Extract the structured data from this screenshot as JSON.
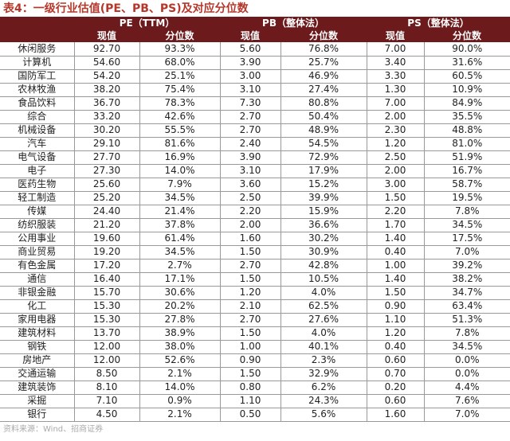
{
  "title": "表4：一级行业估值(PE、PB、PS)及对应分位数",
  "groups": [
    "PE（TTM）",
    "PB（整体法）",
    "PS（整体法）"
  ],
  "subheaders": [
    "现值",
    "分位数",
    "现值",
    "分位数",
    "现值",
    "分位数"
  ],
  "rows": [
    [
      "休闲服务",
      "92.70",
      "93.3%",
      "5.60",
      "76.8%",
      "7.00",
      "90.0%"
    ],
    [
      "计算机",
      "54.60",
      "68.0%",
      "3.90",
      "25.7%",
      "3.40",
      "31.6%"
    ],
    [
      "国防军工",
      "54.20",
      "25.1%",
      "3.00",
      "46.9%",
      "3.30",
      "60.5%"
    ],
    [
      "农林牧渔",
      "38.20",
      "75.4%",
      "3.10",
      "27.4%",
      "1.30",
      "10.9%"
    ],
    [
      "食品饮料",
      "36.70",
      "78.3%",
      "7.30",
      "80.8%",
      "7.00",
      "84.9%"
    ],
    [
      "综合",
      "33.20",
      "42.6%",
      "2.70",
      "50.4%",
      "2.00",
      "35.5%"
    ],
    [
      "机械设备",
      "30.20",
      "55.5%",
      "2.70",
      "48.9%",
      "2.30",
      "48.8%"
    ],
    [
      "汽车",
      "29.10",
      "81.6%",
      "2.40",
      "54.5%",
      "1.20",
      "81.0%"
    ],
    [
      "电气设备",
      "27.70",
      "16.9%",
      "3.90",
      "72.9%",
      "2.50",
      "51.9%"
    ],
    [
      "电子",
      "27.30",
      "14.0%",
      "3.10",
      "17.9%",
      "2.00",
      "16.7%"
    ],
    [
      "医药生物",
      "25.60",
      "7.9%",
      "3.60",
      "15.2%",
      "3.00",
      "58.7%"
    ],
    [
      "轻工制造",
      "25.20",
      "34.5%",
      "2.50",
      "39.9%",
      "1.50",
      "19.5%"
    ],
    [
      "传媒",
      "24.40",
      "21.4%",
      "2.20",
      "15.9%",
      "2.20",
      "7.8%"
    ],
    [
      "纺织服装",
      "21.20",
      "37.8%",
      "2.00",
      "36.6%",
      "1.70",
      "34.5%"
    ],
    [
      "公用事业",
      "19.60",
      "61.4%",
      "1.60",
      "30.2%",
      "1.40",
      "17.5%"
    ],
    [
      "商业贸易",
      "19.20",
      "34.5%",
      "1.50",
      "30.9%",
      "0.40",
      "7.0%"
    ],
    [
      "有色金属",
      "17.20",
      "2.7%",
      "2.70",
      "42.8%",
      "1.00",
      "39.2%"
    ],
    [
      "通信",
      "16.40",
      "17.1%",
      "1.50",
      "10.5%",
      "1.40",
      "38.2%"
    ],
    [
      "非银金融",
      "15.70",
      "30.6%",
      "1.20",
      "4.0%",
      "1.50",
      "34.7%"
    ],
    [
      "化工",
      "15.30",
      "20.2%",
      "2.10",
      "62.5%",
      "0.90",
      "63.4%"
    ],
    [
      "家用电器",
      "15.30",
      "27.8%",
      "2.70",
      "27.6%",
      "1.10",
      "51.3%"
    ],
    [
      "建筑材料",
      "13.70",
      "38.9%",
      "1.50",
      "4.0%",
      "1.20",
      "7.8%"
    ],
    [
      "钢铁",
      "12.00",
      "38.0%",
      "1.00",
      "40.1%",
      "0.40",
      "34.5%"
    ],
    [
      "房地产",
      "12.00",
      "52.6%",
      "0.90",
      "2.3%",
      "0.60",
      "0.0%"
    ],
    [
      "交通运输",
      "8.50",
      "2.1%",
      "1.50",
      "32.9%",
      "0.70",
      "0.0%"
    ],
    [
      "建筑装饰",
      "8.10",
      "14.0%",
      "0.80",
      "6.2%",
      "0.20",
      "4.4%"
    ],
    [
      "采掘",
      "7.10",
      "0.9%",
      "1.10",
      "24.3%",
      "0.60",
      "7.6%"
    ],
    [
      "银行",
      "4.50",
      "2.1%",
      "0.50",
      "5.6%",
      "1.60",
      "7.0%"
    ]
  ],
  "source": "资料来源：Wind、招商证券"
}
